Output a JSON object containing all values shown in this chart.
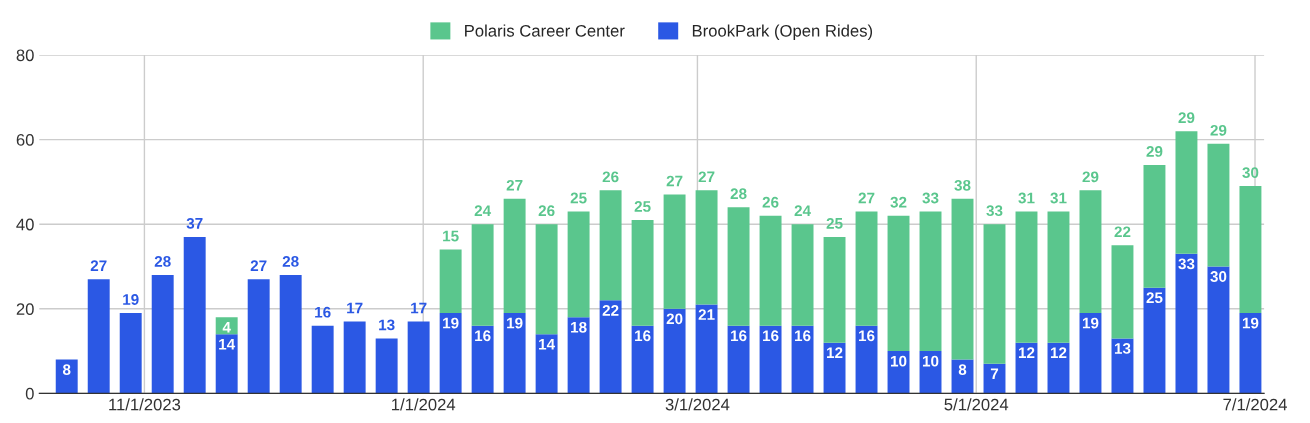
{
  "chart_data": {
    "type": "bar",
    "stacked": true,
    "x": [
      "2023-10-15",
      "2023-10-22",
      "2023-10-29",
      "2023-11-05",
      "2023-11-12",
      "2023-11-19",
      "2023-11-26",
      "2023-12-03",
      "2023-12-10",
      "2023-12-17",
      "2023-12-24",
      "2023-12-31",
      "2024-01-07",
      "2024-01-14",
      "2024-01-21",
      "2024-01-28",
      "2024-02-04",
      "2024-02-11",
      "2024-02-18",
      "2024-02-25",
      "2024-03-03",
      "2024-03-10",
      "2024-03-17",
      "2024-03-24",
      "2024-03-31",
      "2024-04-07",
      "2024-04-14",
      "2024-04-21",
      "2024-04-28",
      "2024-05-05",
      "2024-05-12",
      "2024-05-19",
      "2024-05-26",
      "2024-06-02",
      "2024-06-09",
      "2024-06-16",
      "2024-06-23",
      "2024-06-30"
    ],
    "series": [
      {
        "name": "BrookPark (Open Rides)",
        "color": "#2b58e4",
        "values": [
          8,
          27,
          19,
          28,
          37,
          14,
          27,
          28,
          16,
          17,
          13,
          17,
          19,
          16,
          19,
          14,
          18,
          22,
          16,
          20,
          21,
          16,
          16,
          16,
          12,
          16,
          10,
          10,
          8,
          7,
          12,
          12,
          19,
          13,
          25,
          33,
          30,
          19
        ]
      },
      {
        "name": "Polaris Career Center",
        "color": "#5ac68d",
        "values": [
          null,
          null,
          null,
          null,
          null,
          4,
          null,
          null,
          null,
          null,
          null,
          null,
          15,
          24,
          27,
          26,
          25,
          26,
          25,
          27,
          27,
          28,
          26,
          24,
          25,
          27,
          32,
          33,
          38,
          33,
          31,
          31,
          29,
          22,
          29,
          29,
          29,
          30
        ]
      }
    ],
    "xlim": [
      "2023-10-09",
      "2024-07-03"
    ],
    "xticks": [
      {
        "value": "2023-11-01",
        "label": "11/1/2023"
      },
      {
        "value": "2024-01-01",
        "label": "1/1/2024"
      },
      {
        "value": "2024-03-01",
        "label": "3/1/2024"
      },
      {
        "value": "2024-05-01",
        "label": "5/1/2024"
      },
      {
        "value": "2024-07-01",
        "label": "7/1/2024"
      }
    ],
    "ylim": [
      0,
      80
    ],
    "yticks": [
      0,
      20,
      40,
      60,
      80
    ],
    "grid": true,
    "legend": "top",
    "data_labels": true
  }
}
